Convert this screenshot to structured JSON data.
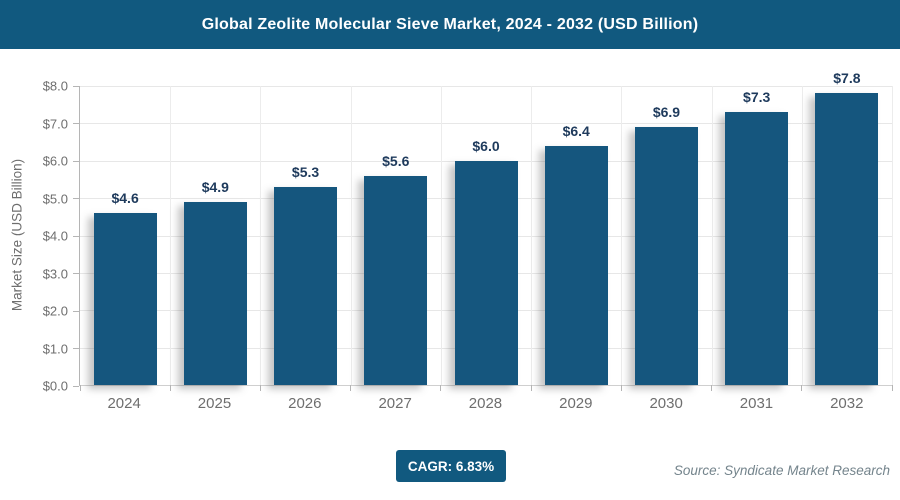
{
  "header": {
    "title": "Global Zeolite Molecular Sieve Market, 2024 - 2032 (USD Billion)"
  },
  "chart_data": {
    "type": "bar",
    "title": "Global Zeolite Molecular Sieve Market, 2024 - 2032 (USD Billion)",
    "categories": [
      "2024",
      "2025",
      "2026",
      "2027",
      "2028",
      "2029",
      "2030",
      "2031",
      "2032"
    ],
    "values": [
      4.6,
      4.9,
      5.3,
      5.6,
      6.0,
      6.4,
      6.9,
      7.3,
      7.8
    ],
    "bar_labels": [
      "$4.6",
      "$4.9",
      "$5.3",
      "$5.6",
      "$6.0",
      "$6.4",
      "$6.9",
      "$7.3",
      "$7.8"
    ],
    "xlabel": "",
    "ylabel": "Market Size (USD Billion)",
    "ylim": [
      0,
      8
    ],
    "ytick_labels": [
      "$0.0",
      "$1.0",
      "$2.0",
      "$3.0",
      "$4.0",
      "$5.0",
      "$6.0",
      "$7.0",
      "$8.0"
    ],
    "grid": true,
    "legend": false
  },
  "footer": {
    "cagr_label": "CAGR: 6.83%",
    "source": "Source: Syndicate Market Research"
  },
  "colors": {
    "header_bg": "#11597f",
    "bar": "#15567e",
    "value_label": "#1e3a5c",
    "axis_text": "#6e6e6e",
    "grid": "#e7e7e7"
  }
}
